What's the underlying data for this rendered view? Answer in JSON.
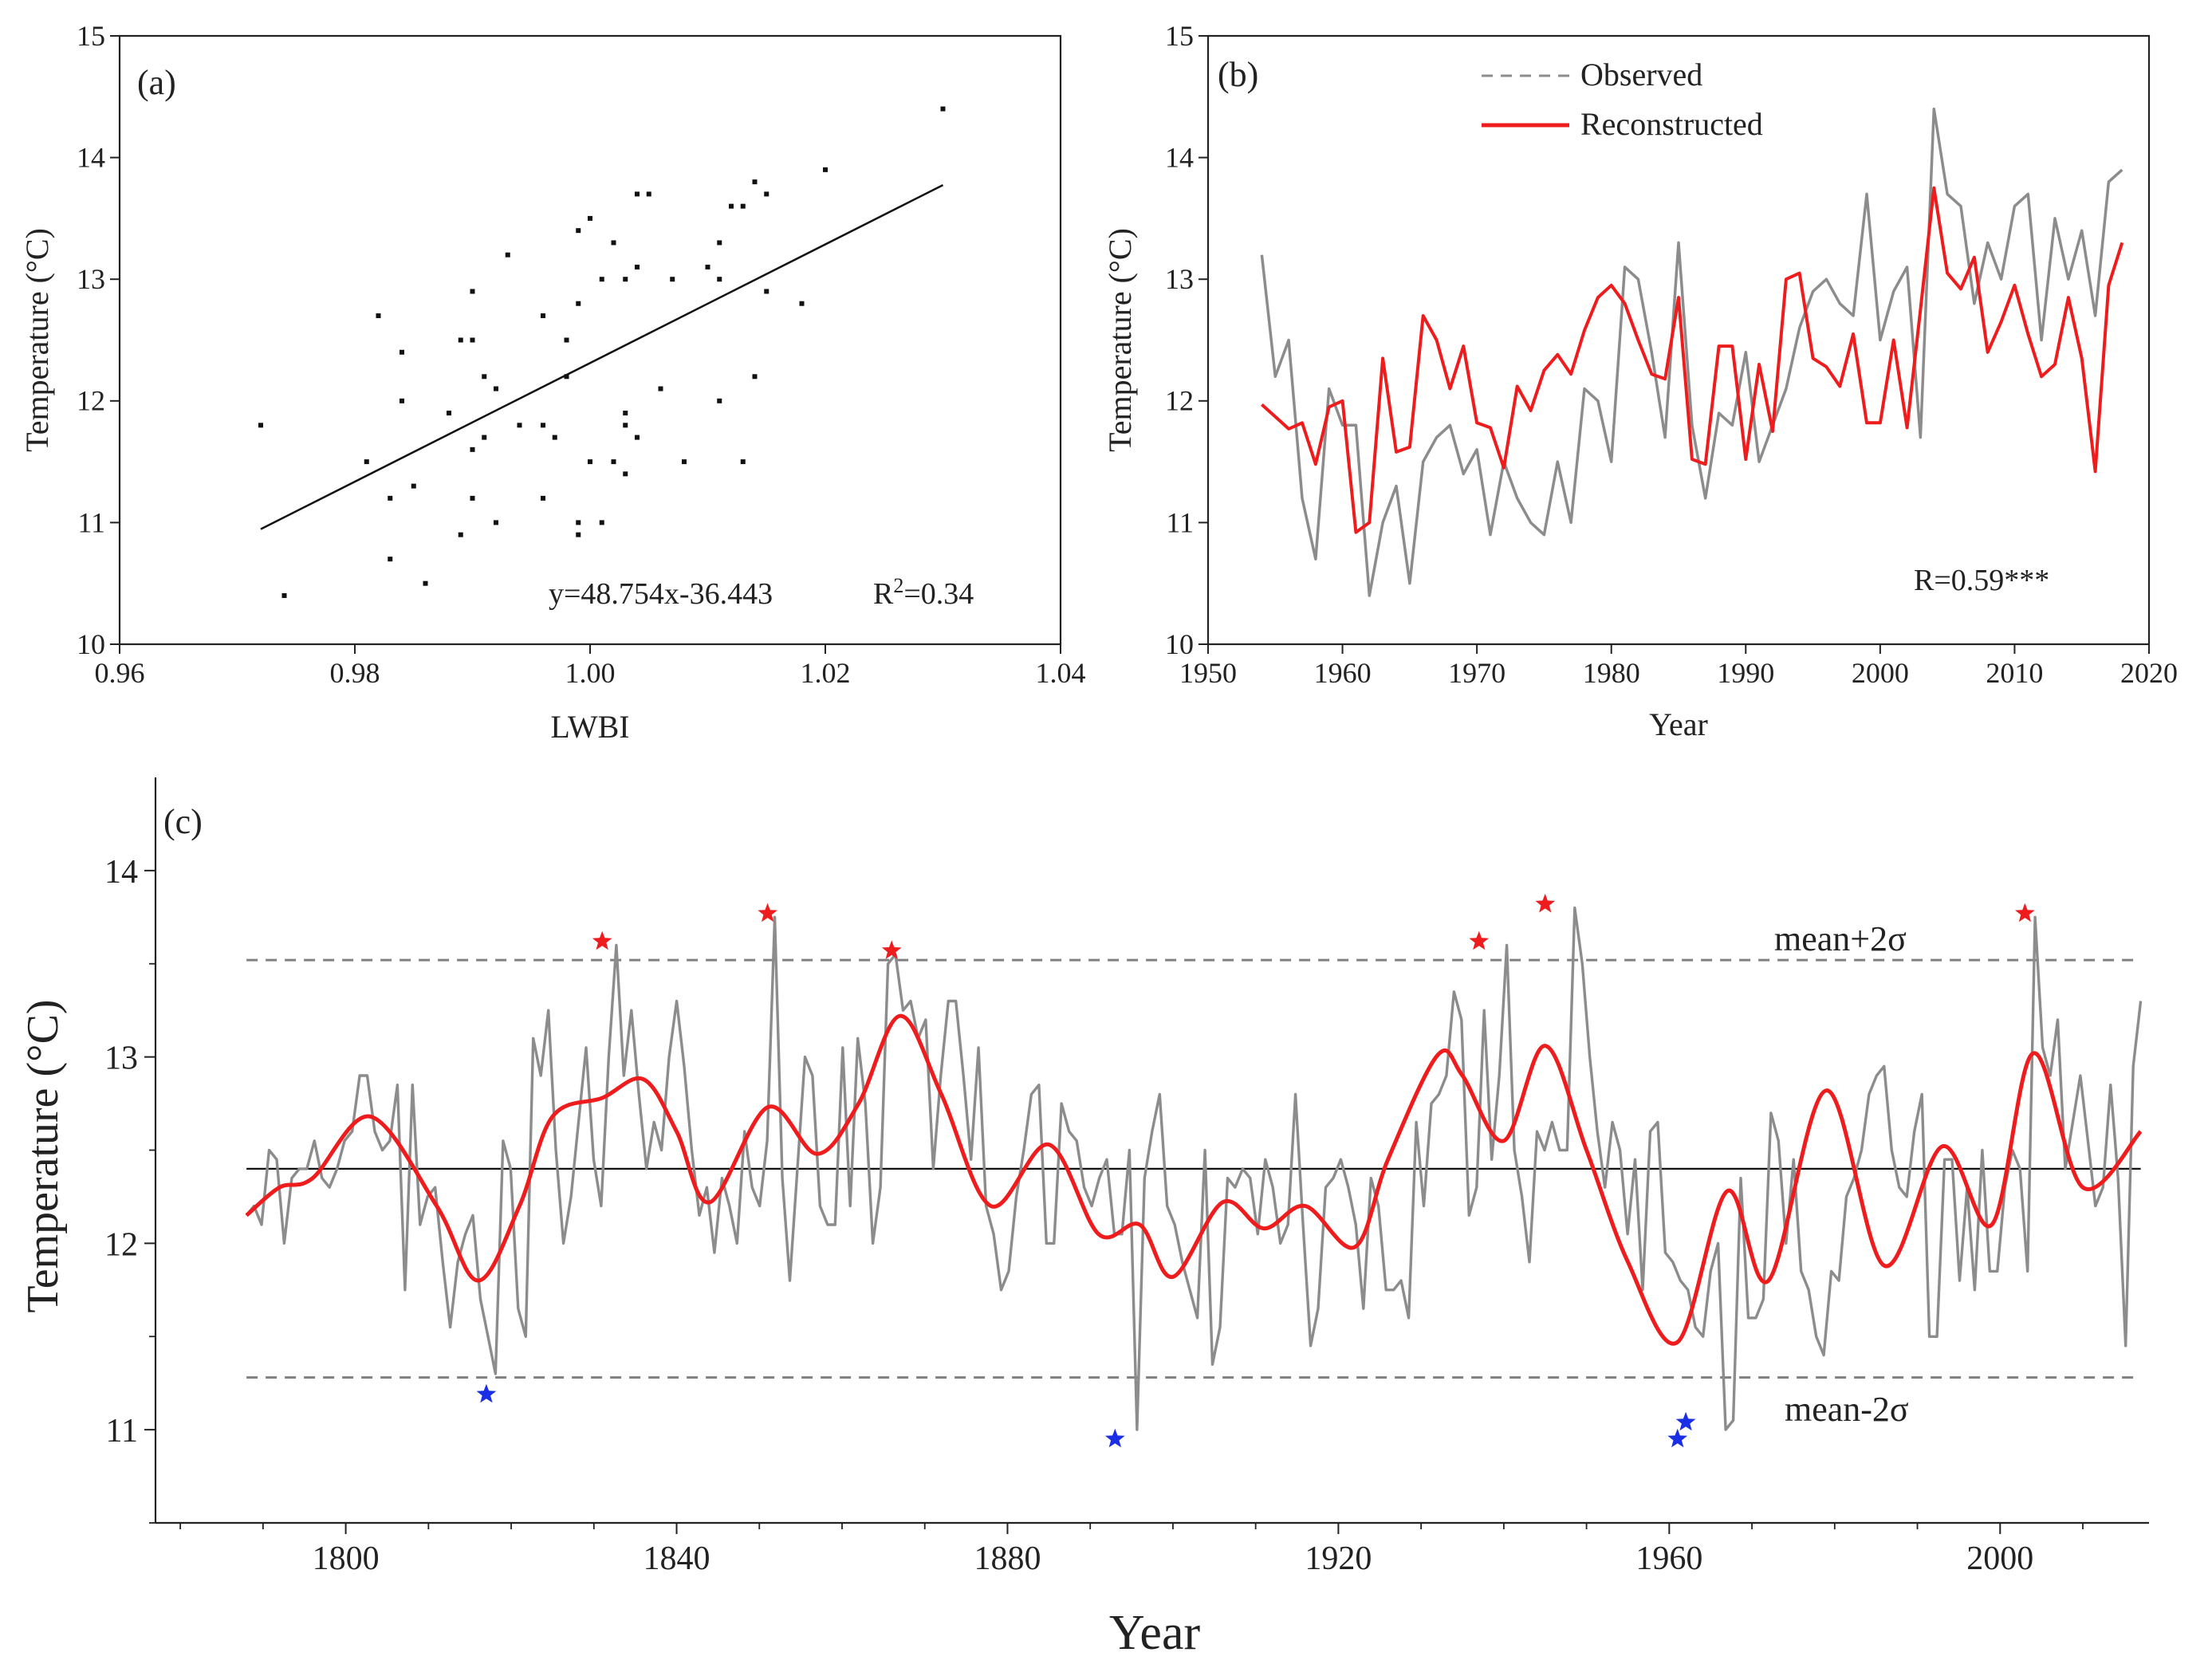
{
  "colors": {
    "axis": "#222222",
    "observed": "#8c8c8c",
    "reconstructed": "#ee1c1c",
    "hot_star": "#ee1c1c",
    "cold_star": "#1a2ee6",
    "fit": "#111111",
    "dashed": "#808080"
  },
  "chart_data": [
    {
      "panel": "(a)",
      "type": "scatter",
      "xlabel": "LWBI",
      "ylabel": "Temperature (°C)",
      "xlim": [
        0.96,
        1.04
      ],
      "ylim": [
        10,
        15
      ],
      "x_ticks": [
        "0.96",
        "0.98",
        "1.00",
        "1.02",
        "1.04"
      ],
      "y_ticks": [
        "10",
        "11",
        "12",
        "13",
        "14",
        "15"
      ],
      "equation": "y=48.754x-36.443",
      "r2_prefix": "R",
      "r2_sup": "2",
      "r2_value": "=0.34",
      "fit_line": {
        "x": [
          0.972,
          1.03
        ],
        "y": [
          10.946,
          13.774
        ]
      },
      "points": [
        [
          0.972,
          11.8
        ],
        [
          0.974,
          10.4
        ],
        [
          0.981,
          11.5
        ],
        [
          0.982,
          12.7
        ],
        [
          0.983,
          11.2
        ],
        [
          0.983,
          10.7
        ],
        [
          0.984,
          12.4
        ],
        [
          0.984,
          12.0
        ],
        [
          0.985,
          11.3
        ],
        [
          0.986,
          10.5
        ],
        [
          0.988,
          11.9
        ],
        [
          0.989,
          12.5
        ],
        [
          0.989,
          10.9
        ],
        [
          0.99,
          12.9
        ],
        [
          0.99,
          12.5
        ],
        [
          0.99,
          11.6
        ],
        [
          0.99,
          11.2
        ],
        [
          0.991,
          12.2
        ],
        [
          0.991,
          11.7
        ],
        [
          0.992,
          12.1
        ],
        [
          0.992,
          11.0
        ],
        [
          0.993,
          13.2
        ],
        [
          0.994,
          11.8
        ],
        [
          0.996,
          12.7
        ],
        [
          0.996,
          11.8
        ],
        [
          0.996,
          11.2
        ],
        [
          0.997,
          11.7
        ],
        [
          0.998,
          12.5
        ],
        [
          0.998,
          12.2
        ],
        [
          0.999,
          13.4
        ],
        [
          0.999,
          12.8
        ],
        [
          0.999,
          11.0
        ],
        [
          0.999,
          10.9
        ],
        [
          1.0,
          13.5
        ],
        [
          1.0,
          11.5
        ],
        [
          1.001,
          13.0
        ],
        [
          1.001,
          11.0
        ],
        [
          1.002,
          13.3
        ],
        [
          1.002,
          11.5
        ],
        [
          1.003,
          13.0
        ],
        [
          1.003,
          11.9
        ],
        [
          1.003,
          11.8
        ],
        [
          1.003,
          11.4
        ],
        [
          1.004,
          13.7
        ],
        [
          1.004,
          13.1
        ],
        [
          1.004,
          11.7
        ],
        [
          1.005,
          13.7
        ],
        [
          1.006,
          12.1
        ],
        [
          1.007,
          13.0
        ],
        [
          1.008,
          11.5
        ],
        [
          1.01,
          13.1
        ],
        [
          1.011,
          13.3
        ],
        [
          1.011,
          13.0
        ],
        [
          1.011,
          12.0
        ],
        [
          1.012,
          13.6
        ],
        [
          1.013,
          13.6
        ],
        [
          1.013,
          11.5
        ],
        [
          1.014,
          13.8
        ],
        [
          1.014,
          12.2
        ],
        [
          1.015,
          13.7
        ],
        [
          1.015,
          12.9
        ],
        [
          1.018,
          12.8
        ],
        [
          1.02,
          13.9
        ],
        [
          1.03,
          14.4
        ]
      ]
    },
    {
      "panel": "(b)",
      "type": "line",
      "xlabel": "Year",
      "ylabel": "Temperature (°C)",
      "xlim": [
        1950,
        2020
      ],
      "ylim": [
        10,
        15
      ],
      "x_ticks": [
        "1950",
        "1960",
        "1970",
        "1980",
        "1990",
        "2000",
        "2010",
        "2020"
      ],
      "y_ticks": [
        "10",
        "11",
        "12",
        "13",
        "14",
        "15"
      ],
      "annotation": "R=0.59***",
      "x_start": 1954,
      "series": [
        {
          "name": "Observed",
          "style": "dashed-gray",
          "values": [
            13.2,
            12.2,
            12.5,
            11.2,
            10.7,
            12.1,
            11.8,
            11.8,
            10.4,
            11.0,
            11.3,
            10.5,
            11.5,
            11.7,
            11.8,
            11.4,
            11.6,
            10.9,
            11.5,
            11.2,
            11.0,
            10.9,
            11.5,
            11.0,
            12.1,
            12.0,
            11.5,
            13.1,
            13.0,
            12.4,
            11.7,
            13.3,
            11.8,
            11.2,
            11.9,
            11.8,
            12.4,
            11.5,
            11.8,
            12.1,
            12.6,
            12.9,
            13.0,
            12.8,
            12.7,
            13.7,
            12.5,
            12.9,
            13.1,
            11.7,
            14.4,
            13.7,
            13.6,
            12.8,
            13.3,
            13.0,
            13.6,
            13.7,
            12.5,
            13.5,
            13.0,
            13.4,
            12.7,
            13.8,
            13.9
          ]
        },
        {
          "name": "Reconstructed",
          "style": "solid-red",
          "values": [
            11.97,
            11.87,
            11.77,
            11.82,
            11.48,
            11.95,
            12.0,
            10.92,
            11.0,
            12.35,
            11.58,
            11.62,
            12.7,
            12.5,
            12.1,
            12.45,
            11.82,
            11.78,
            11.45,
            12.12,
            11.92,
            12.25,
            12.38,
            12.22,
            12.58,
            12.85,
            12.95,
            12.8,
            12.5,
            12.22,
            12.18,
            12.85,
            11.52,
            11.48,
            12.45,
            12.45,
            11.52,
            12.3,
            11.75,
            13.0,
            13.05,
            12.35,
            12.28,
            12.12,
            12.55,
            11.82,
            11.82,
            12.5,
            11.78,
            12.75,
            13.75,
            13.05,
            12.92,
            13.18,
            12.4,
            12.65,
            12.95,
            12.55,
            12.2,
            12.3,
            12.85,
            12.35,
            11.42,
            12.95,
            13.3
          ]
        }
      ]
    },
    {
      "panel": "(c)",
      "type": "line",
      "xlabel": "Year",
      "ylabel": "Temperature (°C)",
      "xlim": [
        1777,
        2018
      ],
      "ylim": [
        10.5,
        14.5
      ],
      "x_ticks": [
        "1800",
        "1840",
        "1880",
        "1920",
        "1960",
        "2000"
      ],
      "y_ticks": [
        "11",
        "12",
        "13",
        "14"
      ],
      "mean": 12.4,
      "upper": {
        "label": "mean+2σ",
        "value": 13.52
      },
      "lower": {
        "label": "mean-2σ",
        "value": 11.28
      },
      "x_start": 1788,
      "smooth_nodes": [
        [
          1788,
          12.15
        ],
        [
          1792,
          12.3
        ],
        [
          1796,
          12.35
        ],
        [
          1803,
          12.68
        ],
        [
          1811,
          12.2
        ],
        [
          1816,
          11.8
        ],
        [
          1821,
          12.2
        ],
        [
          1825,
          12.68
        ],
        [
          1831,
          12.78
        ],
        [
          1836,
          12.88
        ],
        [
          1840,
          12.6
        ],
        [
          1844,
          12.22
        ],
        [
          1851,
          12.73
        ],
        [
          1857,
          12.48
        ],
        [
          1862,
          12.75
        ],
        [
          1867,
          13.22
        ],
        [
          1872,
          12.8
        ],
        [
          1878,
          12.2
        ],
        [
          1885,
          12.53
        ],
        [
          1891,
          12.05
        ],
        [
          1896,
          12.1
        ],
        [
          1900,
          11.82
        ],
        [
          1906,
          12.22
        ],
        [
          1911,
          12.08
        ],
        [
          1916,
          12.2
        ],
        [
          1922,
          11.98
        ],
        [
          1926,
          12.45
        ],
        [
          1932,
          13.01
        ],
        [
          1935,
          12.9
        ],
        [
          1940,
          12.55
        ],
        [
          1945,
          13.06
        ],
        [
          1950,
          12.5
        ],
        [
          1955,
          11.9
        ],
        [
          1961,
          11.47
        ],
        [
          1967,
          12.28
        ],
        [
          1972,
          11.8
        ],
        [
          1979,
          12.82
        ],
        [
          1986,
          11.88
        ],
        [
          1993,
          12.52
        ],
        [
          1999,
          12.1
        ],
        [
          2004,
          13.02
        ],
        [
          2010,
          12.3
        ],
        [
          2017,
          12.6
        ]
      ],
      "observed_values": [
        12.15,
        12.2,
        12.1,
        12.5,
        12.45,
        12.0,
        12.35,
        12.4,
        12.4,
        12.55,
        12.35,
        12.3,
        12.4,
        12.55,
        12.6,
        12.9,
        12.9,
        12.6,
        12.5,
        12.55,
        12.85,
        11.75,
        12.85,
        12.1,
        12.25,
        12.3,
        11.9,
        11.55,
        11.9,
        12.05,
        12.15,
        11.7,
        11.5,
        11.3,
        12.55,
        12.4,
        11.65,
        11.5,
        13.1,
        12.9,
        13.25,
        12.5,
        12.0,
        12.25,
        12.65,
        13.05,
        12.45,
        12.2,
        13.0,
        13.6,
        12.9,
        13.25,
        12.8,
        12.4,
        12.65,
        12.5,
        13.0,
        13.3,
        12.95,
        12.5,
        12.15,
        12.3,
        11.95,
        12.35,
        12.2,
        12.0,
        12.6,
        12.3,
        12.2,
        12.55,
        13.75,
        12.35,
        11.8,
        12.4,
        13.0,
        12.9,
        12.2,
        12.1,
        12.1,
        13.05,
        12.2,
        13.1,
        12.75,
        12.0,
        12.3,
        13.5,
        13.55,
        13.25,
        13.3,
        13.1,
        13.2,
        12.4,
        12.9,
        13.3,
        13.3,
        12.9,
        12.45,
        13.05,
        12.2,
        12.05,
        11.75,
        11.85,
        12.25,
        12.5,
        12.8,
        12.85,
        12.0,
        12.0,
        12.75,
        12.6,
        12.55,
        12.3,
        12.2,
        12.35,
        12.45,
        12.05,
        12.05,
        12.5,
        11.0,
        12.35,
        12.6,
        12.8,
        12.2,
        12.1,
        11.9,
        11.75,
        11.6,
        12.5,
        11.35,
        11.55,
        12.35,
        12.3,
        12.4,
        12.35,
        12.05,
        12.45,
        12.3,
        12.0,
        12.1,
        12.8,
        12.1,
        11.45,
        11.65,
        12.3,
        12.35,
        12.45,
        12.3,
        12.1,
        11.65,
        12.35,
        12.2,
        11.75,
        11.75,
        11.8,
        11.6,
        12.65,
        12.2,
        12.75,
        12.8,
        12.9,
        13.35,
        13.2,
        12.15,
        12.3,
        13.25,
        12.45,
        12.9,
        13.6,
        12.5,
        12.25,
        11.9,
        12.6,
        12.5,
        12.65,
        12.5,
        12.5,
        13.8,
        13.5,
        13.0,
        12.6,
        12.3,
        12.65,
        12.5,
        12.05,
        12.45,
        11.75,
        12.6,
        12.65,
        11.95,
        11.9,
        11.8,
        11.75,
        11.55,
        11.5,
        11.85,
        12.0,
        11.0,
        11.05,
        12.35,
        11.6,
        11.6,
        11.7,
        12.7,
        12.55,
        12.0,
        12.45,
        11.85,
        11.75,
        11.5,
        11.4,
        11.85,
        11.8,
        12.25,
        12.35,
        12.5,
        12.8,
        12.9,
        12.95,
        12.5,
        12.3,
        12.25,
        12.6,
        12.8,
        11.5,
        11.5,
        12.45,
        12.45,
        11.8,
        12.3,
        11.75,
        12.5,
        11.85,
        11.85,
        12.3,
        12.5,
        12.4,
        11.85,
        13.75,
        13.05,
        12.9,
        13.2,
        12.4,
        12.65,
        12.9,
        12.55,
        12.2,
        12.3,
        12.85,
        12.35,
        11.45,
        12.95,
        13.3
      ],
      "hot_years": [
        [
          1831,
          13.62
        ],
        [
          1851,
          13.77
        ],
        [
          1866,
          13.57
        ],
        [
          1937,
          13.62
        ],
        [
          1945,
          13.82
        ],
        [
          2003,
          13.77
        ]
      ],
      "cold_years": [
        [
          1817,
          11.19
        ],
        [
          1893,
          10.95
        ],
        [
          1961,
          10.95
        ],
        [
          1962,
          11.04
        ]
      ]
    }
  ]
}
